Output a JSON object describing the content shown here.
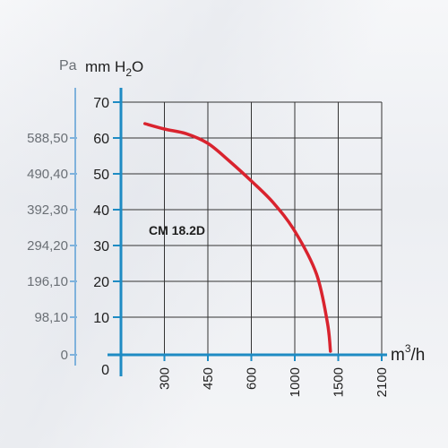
{
  "chart_data": {
    "type": "line",
    "annotation": "CM 18.2D",
    "y_units": {
      "pa_label": "Pa",
      "mmh2o_label_prefix": "mm H",
      "mmh2o_label_sub": "2",
      "mmh2o_label_suffix": "O"
    },
    "x_unit": {
      "prefix": "m",
      "sup": "3",
      "suffix": "/h"
    },
    "y_ticks_mmh2o": [
      "0",
      "10",
      "20",
      "30",
      "40",
      "50",
      "60",
      "70"
    ],
    "y_ticks_pa": [
      "0",
      "98,10",
      "196,10",
      "294,20",
      "392,30",
      "490,40",
      "588,50"
    ],
    "x_ticks": [
      "300",
      "450",
      "600",
      "1000",
      "1500",
      "2100"
    ],
    "ylim": [
      0,
      70
    ],
    "grid": true,
    "colors": {
      "curve": "#d9232e",
      "axis": "#1e8bc3",
      "grid": "#333333",
      "pa_axis": "#7fb2dc"
    },
    "series": [
      {
        "x_grid_units": [
          0.55,
          1.0,
          1.5,
          2.0,
          2.5,
          3.0,
          3.5,
          4.0,
          4.5,
          4.75,
          4.82
        ],
        "values": [
          64,
          62.5,
          61.2,
          58.5,
          53.5,
          48,
          42,
          34,
          22,
          8.5,
          0.5
        ]
      }
    ]
  }
}
